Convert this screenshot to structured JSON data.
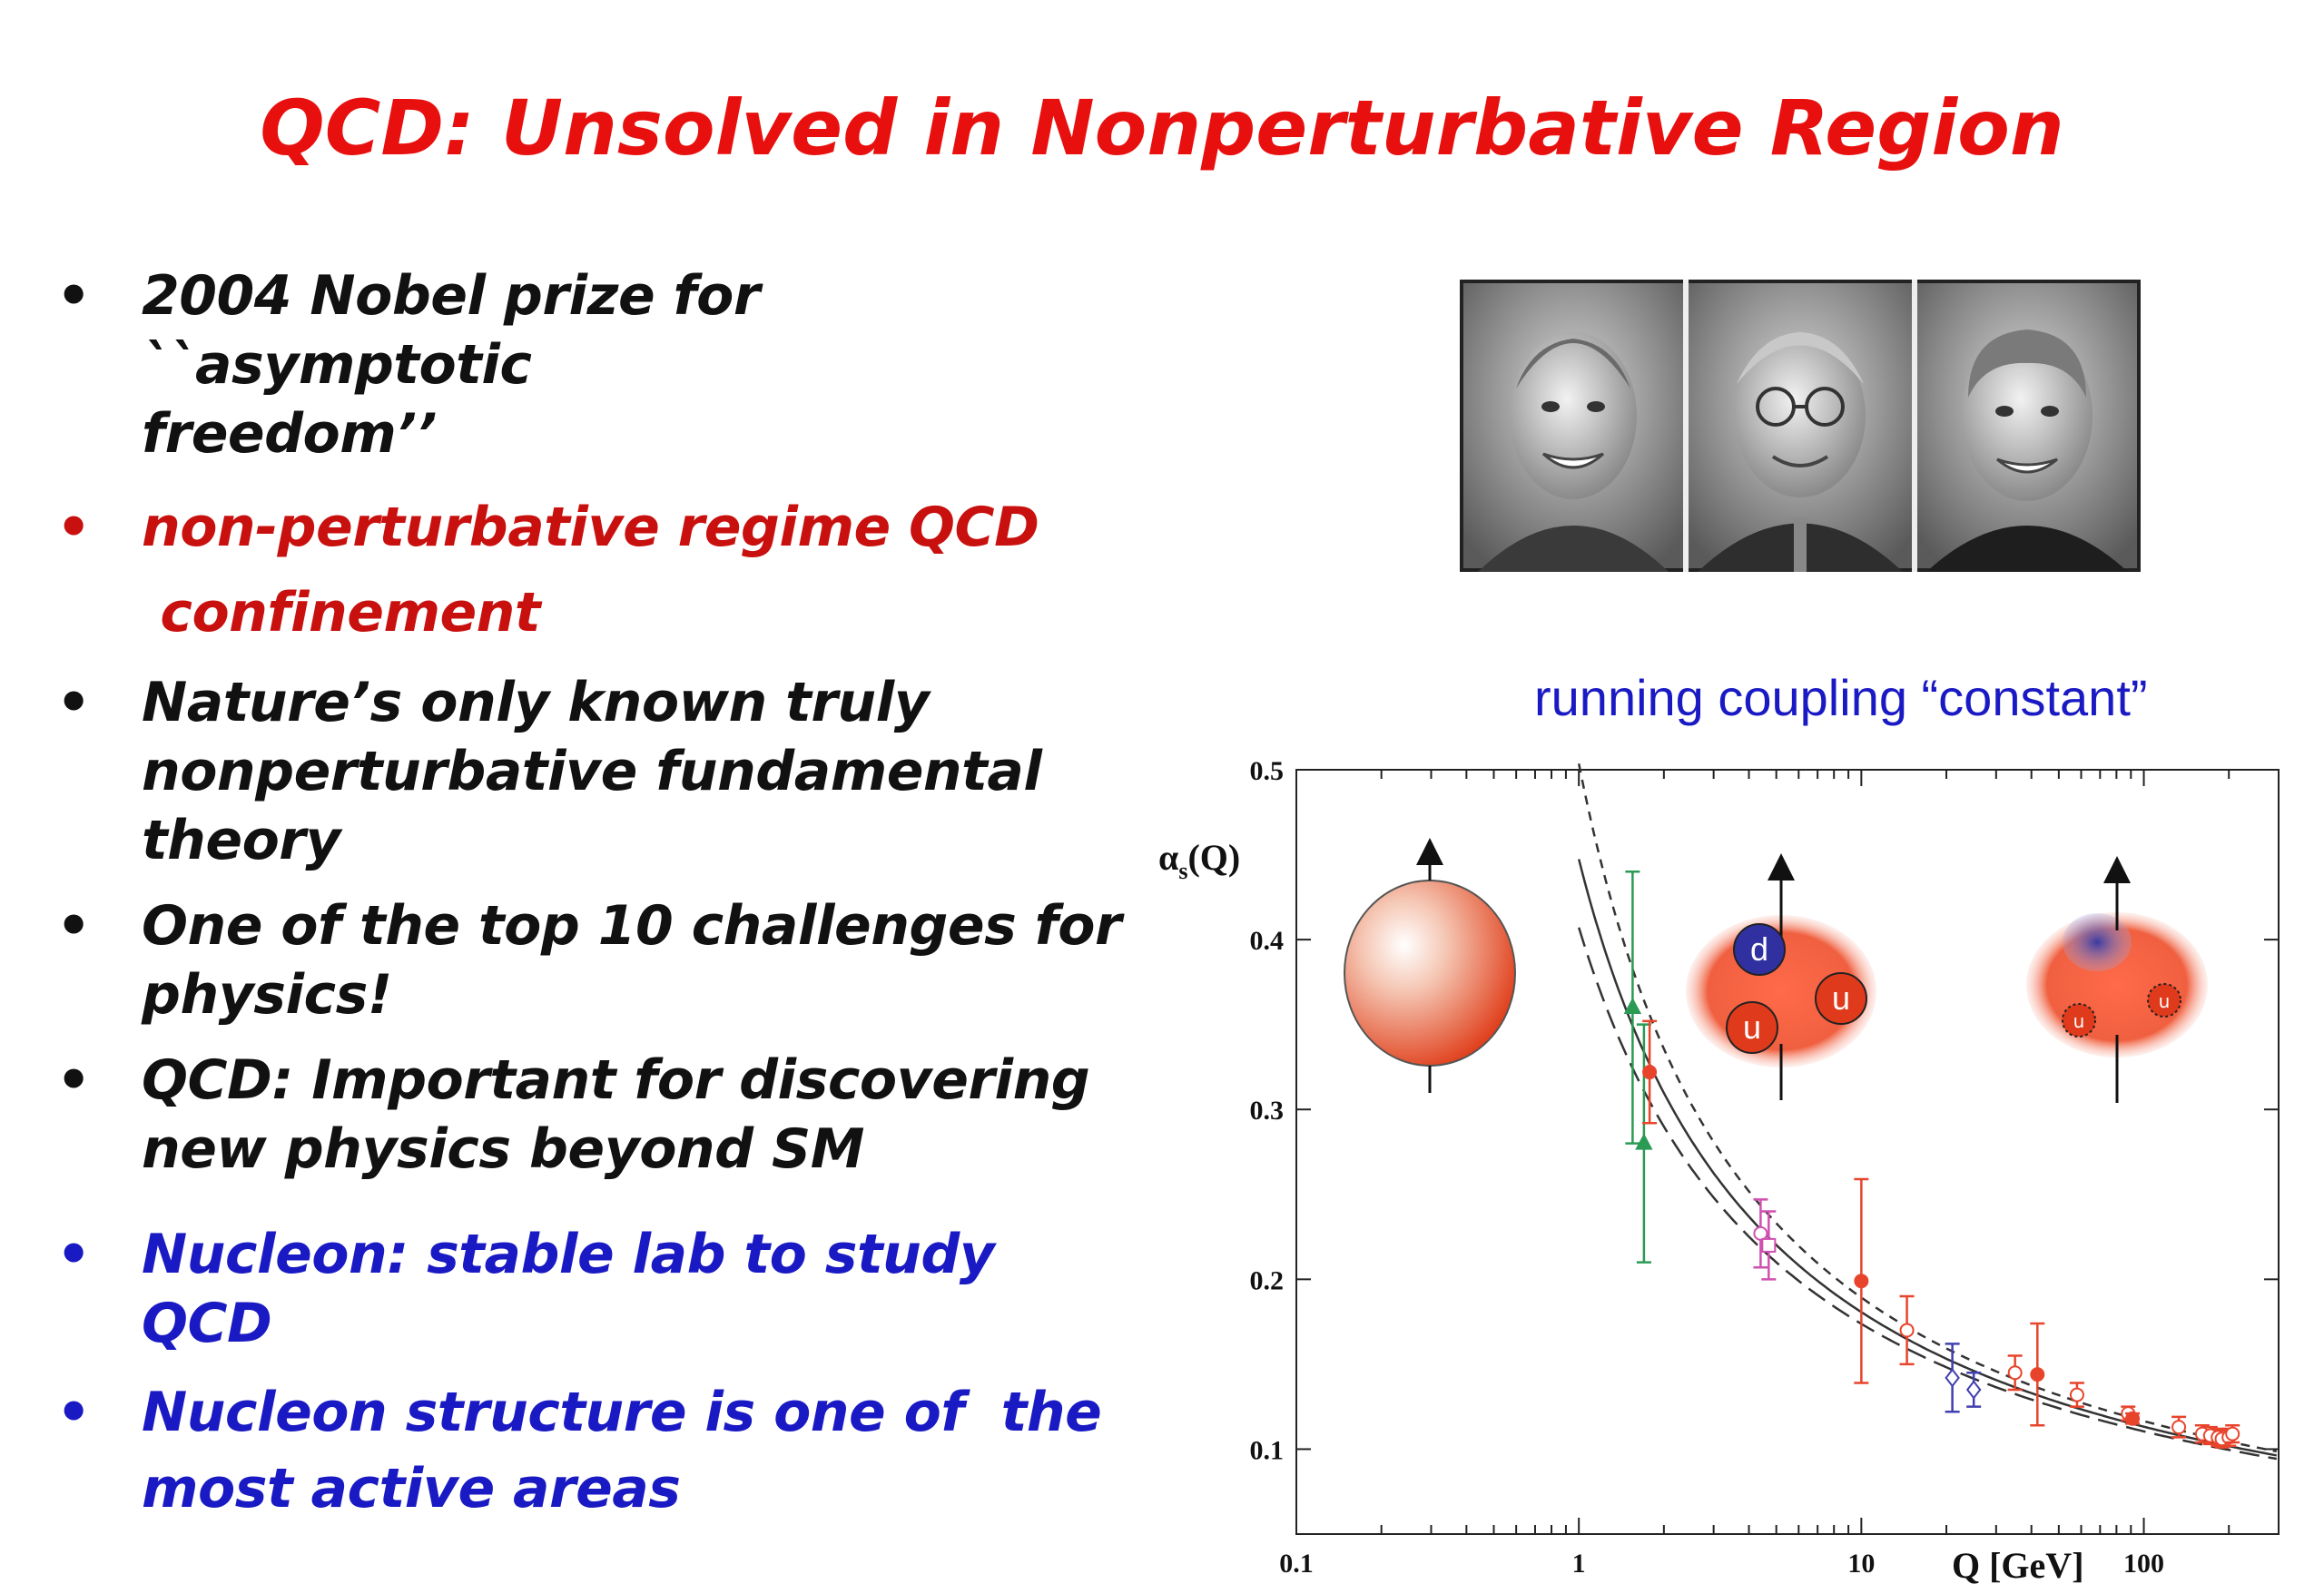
{
  "title": "QCD: Unsolved in Nonperturbative Region",
  "bullets": [
    {
      "lines": [
        "2004 Nobel prize for ``asymptotic",
        "freedom’’"
      ],
      "color": "#111111"
    },
    {
      "lines": [
        "non-perturbative regime QCD",
        " confinement"
      ],
      "color": "#c8100e"
    },
    {
      "lines": [
        "Nature’s only known truly",
        "nonperturbative fundamental",
        "theory"
      ],
      "color": "#111111"
    },
    {
      "lines": [
        "One of the top 10 challenges for",
        "physics!"
      ],
      "color": "#111111"
    },
    {
      "lines": [
        "QCD: Important for discovering",
        "new physics beyond SM"
      ],
      "color": "#111111"
    },
    {
      "lines": [
        "Nucleon: stable lab to study QCD"
      ],
      "color": "#1a1ac4"
    },
    {
      "lines": [
        "Nucleon structure is one of  the",
        "most active areas"
      ],
      "color": "#1a1ac4"
    }
  ],
  "bullet_glyph": "•",
  "coupling_label": "running coupling “constant”",
  "photos": [
    "portrait-1",
    "portrait-2",
    "portrait-3"
  ],
  "chart_data": {
    "type": "scatter",
    "ylabel_main": "α",
    "ylabel_sub": "s",
    "ylabel_tail": "(Q)",
    "xlabel": "Q [GeV]",
    "x_scale": "log",
    "xlim": [
      0.1,
      300
    ],
    "ylim": [
      0.05,
      0.5
    ],
    "xticks": [
      0.1,
      1,
      10,
      100
    ],
    "xtick_labels": [
      "0.1",
      "1",
      "10",
      "100"
    ],
    "yticks": [
      0.1,
      0.2,
      0.3,
      0.4,
      0.5
    ],
    "ytick_labels": [
      "0.1",
      "0.2",
      "0.3",
      "0.4",
      "0.5"
    ],
    "curves": [
      {
        "name": "central",
        "lambda": 0.21,
        "style": "solid",
        "color": "#333333"
      },
      {
        "name": "upper",
        "lambda": 0.25,
        "style": "dashed",
        "color": "#333333"
      },
      {
        "name": "lower",
        "lambda": 0.18,
        "style": "longdash",
        "color": "#333333"
      }
    ],
    "points": [
      {
        "x": 1.55,
        "y": 0.36,
        "err": 0.08,
        "color": "#2a9a55",
        "marker": "triangle"
      },
      {
        "x": 1.7,
        "y": 0.28,
        "err": 0.07,
        "color": "#2a9a55",
        "marker": "triangle"
      },
      {
        "x": 1.78,
        "y": 0.322,
        "err": 0.03,
        "color": "#e8442c",
        "marker": "circle"
      },
      {
        "x": 4.4,
        "y": 0.227,
        "err": 0.02,
        "color": "#d050b0",
        "marker": "open-circle"
      },
      {
        "x": 4.7,
        "y": 0.22,
        "err": 0.02,
        "color": "#d050b0",
        "marker": "open-square"
      },
      {
        "x": 10,
        "y": 0.199,
        "err": 0.06,
        "color": "#e8442c",
        "marker": "circle"
      },
      {
        "x": 14.5,
        "y": 0.17,
        "err": 0.02,
        "color": "#e8442c",
        "marker": "open-circle"
      },
      {
        "x": 21,
        "y": 0.142,
        "err": 0.02,
        "color": "#4040b0",
        "marker": "open-diamond"
      },
      {
        "x": 25,
        "y": 0.135,
        "err": 0.01,
        "color": "#4040b0",
        "marker": "open-diamond"
      },
      {
        "x": 35,
        "y": 0.145,
        "err": 0.01,
        "color": "#e8442c",
        "marker": "open-circle"
      },
      {
        "x": 42,
        "y": 0.144,
        "err": 0.03,
        "color": "#e8442c",
        "marker": "circle"
      },
      {
        "x": 58,
        "y": 0.132,
        "err": 0.007,
        "color": "#e8442c",
        "marker": "open-circle"
      },
      {
        "x": 88,
        "y": 0.121,
        "err": 0.004,
        "color": "#e8442c",
        "marker": "open-circle"
      },
      {
        "x": 91.2,
        "y": 0.118,
        "err": 0.003,
        "color": "#e8442c",
        "marker": "circle"
      },
      {
        "x": 133,
        "y": 0.113,
        "err": 0.006,
        "color": "#e8442c",
        "marker": "open-circle"
      },
      {
        "x": 161,
        "y": 0.109,
        "err": 0.005,
        "color": "#e8442c",
        "marker": "open-circle"
      },
      {
        "x": 172,
        "y": 0.108,
        "err": 0.005,
        "color": "#e8442c",
        "marker": "open-circle"
      },
      {
        "x": 183,
        "y": 0.107,
        "err": 0.005,
        "color": "#e8442c",
        "marker": "open-circle"
      },
      {
        "x": 189,
        "y": 0.106,
        "err": 0.005,
        "color": "#e8442c",
        "marker": "open-circle"
      },
      {
        "x": 200,
        "y": 0.107,
        "err": 0.005,
        "color": "#e8442c",
        "marker": "open-circle"
      },
      {
        "x": 206,
        "y": 0.109,
        "err": 0.005,
        "color": "#e8442c",
        "marker": "open-circle"
      }
    ],
    "nucleon_pictures": [
      {
        "label": "",
        "quarks": []
      },
      {
        "label": "",
        "quarks": [
          "d",
          "u",
          "u"
        ]
      },
      {
        "label": "",
        "quarks": [
          "u",
          "u"
        ]
      }
    ]
  }
}
